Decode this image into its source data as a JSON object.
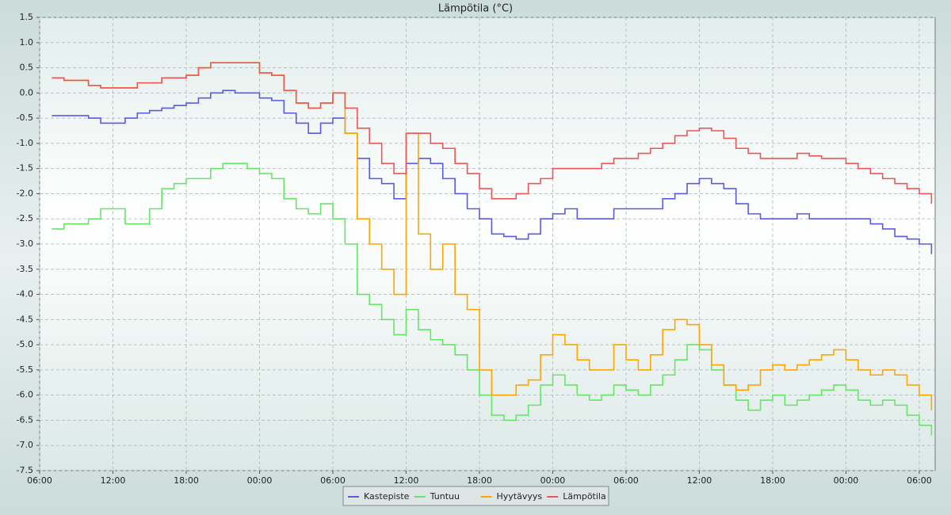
{
  "chart_data": {
    "type": "line",
    "title": "Lämpötila (°C)",
    "x": [
      1,
      2,
      3,
      4,
      5,
      6,
      7,
      8,
      9,
      10,
      11,
      12,
      13,
      14,
      15,
      16,
      17,
      18,
      19,
      20,
      21,
      22,
      23,
      24,
      25,
      26,
      27,
      28,
      29,
      30,
      31,
      32,
      33,
      34,
      35,
      36,
      37,
      38,
      39,
      40,
      41,
      42,
      43,
      44,
      45,
      46,
      47,
      48,
      49,
      50,
      51,
      52,
      53,
      54,
      55,
      56,
      57,
      58,
      59,
      60,
      61,
      62,
      63,
      64,
      65,
      66,
      67,
      68,
      69,
      70,
      71,
      72,
      73
    ],
    "xlim": [
      0,
      73.3
    ],
    "xticks": [
      {
        "value": 0,
        "label": "06:00"
      },
      {
        "value": 6,
        "label": "12:00"
      },
      {
        "value": 12,
        "label": "18:00"
      },
      {
        "value": 18,
        "label": "00:00"
      },
      {
        "value": 24,
        "label": "06:00"
      },
      {
        "value": 30,
        "label": "12:00"
      },
      {
        "value": 36,
        "label": "18:00"
      },
      {
        "value": 42,
        "label": "00:00"
      },
      {
        "value": 48,
        "label": "06:00"
      },
      {
        "value": 54,
        "label": "12:00"
      },
      {
        "value": 60,
        "label": "18:00"
      },
      {
        "value": 66,
        "label": "00:00"
      },
      {
        "value": 72,
        "label": "06:00"
      }
    ],
    "ylim": [
      -7.5,
      1.5
    ],
    "yticks": [
      1.5,
      {
        "value": 1,
        "label": "1.0"
      },
      0.5,
      {
        "value": 0,
        "label": "0.0"
      },
      -0.5,
      {
        "value": -1,
        "label": "-1.0"
      },
      -1.5,
      {
        "value": -2,
        "label": "-2.0"
      },
      -2.5,
      {
        "value": -3,
        "label": "-3.0"
      },
      -3.5,
      {
        "value": -4,
        "label": "-4.0"
      },
      -4.5,
      {
        "value": -5,
        "label": "-5.0"
      },
      -5.5,
      {
        "value": -6,
        "label": "-6.0"
      },
      -6.5,
      {
        "value": -7,
        "label": "-7.0"
      },
      -7.5
    ],
    "grid": true,
    "series": [
      {
        "name": "Kastepiste",
        "color": "#5a5ae6",
        "values": [
          -0.45,
          -0.45,
          -0.45,
          -0.5,
          -0.6,
          -0.6,
          -0.5,
          -0.4,
          -0.35,
          -0.3,
          -0.25,
          -0.2,
          -0.1,
          0.0,
          0.05,
          0.0,
          0.0,
          -0.1,
          -0.15,
          -0.4,
          -0.6,
          -0.8,
          -0.6,
          -0.5,
          -0.8,
          -1.3,
          -1.7,
          -1.8,
          -2.1,
          -1.4,
          -1.3,
          -1.4,
          -1.7,
          -2.0,
          -2.3,
          -2.5,
          -2.8,
          -2.85,
          -2.9,
          -2.8,
          -2.5,
          -2.4,
          -2.3,
          -2.5,
          -2.5,
          -2.5,
          -2.3,
          -2.3,
          -2.3,
          -2.3,
          -2.1,
          -2.0,
          -1.8,
          -1.7,
          -1.8,
          -1.9,
          -2.2,
          -2.4,
          -2.5,
          -2.5,
          -2.5,
          -2.4,
          -2.5,
          -2.5,
          -2.5,
          -2.5,
          -2.5,
          -2.6,
          -2.7,
          -2.85,
          -2.9,
          -3.0,
          -3.2
        ]
      },
      {
        "name": "Tuntuu",
        "color": "#66e666",
        "values": [
          -2.7,
          -2.6,
          -2.6,
          -2.5,
          -2.3,
          -2.3,
          -2.6,
          -2.6,
          -2.3,
          -1.9,
          -1.8,
          -1.7,
          -1.7,
          -1.5,
          -1.4,
          -1.4,
          -1.5,
          -1.6,
          -1.7,
          -2.1,
          -2.3,
          -2.4,
          -2.2,
          -2.5,
          -3.0,
          -4.0,
          -4.2,
          -4.5,
          -4.8,
          -4.3,
          -4.7,
          -4.9,
          -5.0,
          -5.2,
          -5.5,
          -6.0,
          -6.4,
          -6.5,
          -6.4,
          -6.2,
          -5.8,
          -5.6,
          -5.8,
          -6.0,
          -6.1,
          -6.0,
          -5.8,
          -5.9,
          -6.0,
          -5.8,
          -5.6,
          -5.3,
          -5.0,
          -5.1,
          -5.5,
          -5.8,
          -6.1,
          -6.3,
          -6.1,
          -6.0,
          -6.2,
          -6.1,
          -6.0,
          -5.9,
          -5.8,
          -5.9,
          -6.1,
          -6.2,
          -6.1,
          -6.2,
          -6.4,
          -6.6,
          -6.8
        ]
      },
      {
        "name": "Hyytävyys",
        "color": "#ffa500",
        "values": [
          0.3,
          0.25,
          0.25,
          0.15,
          0.1,
          0.1,
          0.1,
          0.2,
          0.2,
          0.3,
          0.3,
          0.35,
          0.5,
          0.6,
          0.6,
          0.6,
          0.6,
          0.4,
          0.35,
          0.05,
          -0.2,
          -0.3,
          -0.2,
          0.0,
          -0.8,
          -2.5,
          -3.0,
          -3.5,
          -4.0,
          -0.8,
          -2.8,
          -3.5,
          -3.0,
          -4.0,
          -4.3,
          -5.5,
          -6.0,
          -6.0,
          -5.8,
          -5.7,
          -5.2,
          -4.8,
          -5.0,
          -5.3,
          -5.5,
          -5.5,
          -5.0,
          -5.3,
          -5.5,
          -5.2,
          -4.7,
          -4.5,
          -4.6,
          -5.0,
          -5.4,
          -5.8,
          -5.9,
          -5.8,
          -5.5,
          -5.4,
          -5.5,
          -5.4,
          -5.3,
          -5.2,
          -5.1,
          -5.3,
          -5.5,
          -5.6,
          -5.5,
          -5.6,
          -5.8,
          -6.0,
          -6.3
        ]
      },
      {
        "name": "Lämpötila",
        "color": "#ee5555",
        "values": [
          0.3,
          0.25,
          0.25,
          0.15,
          0.1,
          0.1,
          0.1,
          0.2,
          0.2,
          0.3,
          0.3,
          0.35,
          0.5,
          0.6,
          0.6,
          0.6,
          0.6,
          0.4,
          0.35,
          0.05,
          -0.2,
          -0.3,
          -0.2,
          0.0,
          -0.3,
          -0.7,
          -1.0,
          -1.4,
          -1.6,
          -0.8,
          -0.8,
          -1.0,
          -1.1,
          -1.4,
          -1.6,
          -1.9,
          -2.1,
          -2.1,
          -2.0,
          -1.8,
          -1.7,
          -1.5,
          -1.5,
          -1.5,
          -1.5,
          -1.4,
          -1.3,
          -1.3,
          -1.2,
          -1.1,
          -1.0,
          -0.85,
          -0.75,
          -0.7,
          -0.75,
          -0.9,
          -1.1,
          -1.2,
          -1.3,
          -1.3,
          -1.3,
          -1.2,
          -1.25,
          -1.3,
          -1.3,
          -1.4,
          -1.5,
          -1.6,
          -1.7,
          -1.8,
          -1.9,
          -2.0,
          -2.2
        ]
      }
    ]
  }
}
